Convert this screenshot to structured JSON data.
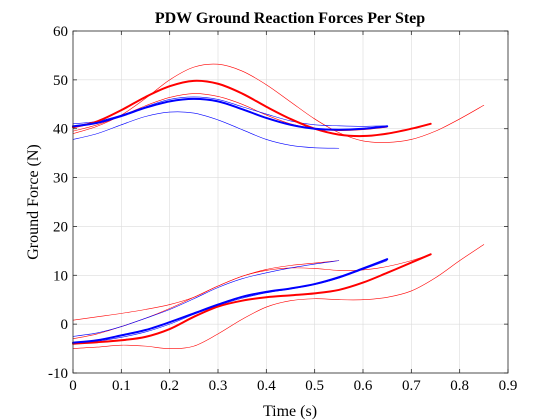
{
  "chart_data": {
    "type": "line",
    "title": "PDW Ground Reaction Forces Per Step",
    "xlabel": "Time (s)",
    "ylabel": "Ground Force (N)",
    "xlim": [
      0,
      0.9
    ],
    "ylim": [
      -10,
      60
    ],
    "xticks": [
      0,
      0.1,
      0.2,
      0.3,
      0.4,
      0.5,
      0.6,
      0.7,
      0.8,
      0.9
    ],
    "xtick_labels": [
      "0",
      "0.1",
      "0.2",
      "0.3",
      "0.4",
      "0.5",
      "0.6",
      "0.7",
      "0.8",
      "0.9"
    ],
    "yticks": [
      -10,
      0,
      10,
      20,
      30,
      40,
      50,
      60
    ],
    "ytick_labels": [
      "-10",
      "0",
      "10",
      "20",
      "30",
      "40",
      "50",
      "60"
    ],
    "grid": true,
    "colors": {
      "red": "#ff0000",
      "blue": "#0000ff",
      "grid": "#dcdcdc",
      "axis": "#262626"
    },
    "series": [
      {
        "color": "#ff0000",
        "width": 2,
        "x": [
          0,
          0.05,
          0.1,
          0.15,
          0.2,
          0.25,
          0.3,
          0.35,
          0.4,
          0.45,
          0.5,
          0.55,
          0.6,
          0.65,
          0.7,
          0.74
        ],
        "y": [
          40.3,
          41.5,
          43.8,
          46.5,
          48.7,
          49.8,
          49.2,
          47.2,
          44.5,
          42.0,
          40.0,
          38.8,
          38.5,
          39.0,
          40.0,
          41.0
        ]
      },
      {
        "color": "#0000ff",
        "width": 2,
        "x": [
          0,
          0.05,
          0.1,
          0.15,
          0.2,
          0.25,
          0.3,
          0.35,
          0.4,
          0.45,
          0.5,
          0.55,
          0.6,
          0.65
        ],
        "y": [
          40.5,
          41.2,
          42.6,
          44.3,
          45.6,
          46.1,
          45.6,
          44.0,
          42.2,
          40.8,
          40.0,
          39.8,
          40.0,
          40.5
        ]
      },
      {
        "color": "#ff0000",
        "width": 0.6,
        "x": [
          0,
          0.05,
          0.1,
          0.15,
          0.2,
          0.25,
          0.3,
          0.35,
          0.4,
          0.45,
          0.5,
          0.55,
          0.6,
          0.65,
          0.7,
          0.75,
          0.8,
          0.85
        ],
        "y": [
          39.0,
          40.5,
          42.8,
          46.2,
          50.0,
          52.6,
          53.2,
          51.8,
          49.0,
          45.5,
          42.0,
          39.2,
          37.5,
          37.2,
          37.8,
          39.5,
          42.0,
          44.8
        ]
      },
      {
        "color": "#ff0000",
        "width": 0.6,
        "x": [
          0,
          0.05,
          0.1,
          0.15,
          0.2,
          0.25,
          0.3,
          0.35,
          0.4,
          0.45,
          0.5,
          0.55,
          0.6,
          0.65
        ],
        "y": [
          39.5,
          40.8,
          42.6,
          44.7,
          46.4,
          47.2,
          46.6,
          45.0,
          42.8,
          41.0,
          40.0,
          39.6,
          39.8,
          40.3
        ]
      },
      {
        "color": "#0000ff",
        "width": 0.6,
        "x": [
          0,
          0.05,
          0.1,
          0.15,
          0.2,
          0.25,
          0.3,
          0.35,
          0.4,
          0.45,
          0.5,
          0.55
        ],
        "y": [
          37.8,
          39.0,
          40.8,
          42.5,
          43.4,
          43.2,
          41.8,
          39.8,
          37.8,
          36.6,
          36.1,
          36.0
        ]
      },
      {
        "color": "#0000ff",
        "width": 0.6,
        "x": [
          0,
          0.05,
          0.1,
          0.15,
          0.2,
          0.25,
          0.3,
          0.35,
          0.4,
          0.45,
          0.5,
          0.55,
          0.6,
          0.65
        ],
        "y": [
          41.0,
          41.5,
          42.8,
          44.5,
          46.0,
          46.5,
          46.0,
          44.5,
          43.0,
          41.6,
          40.8,
          40.6,
          40.5,
          40.6
        ]
      },
      {
        "color": "#ff0000",
        "width": 2,
        "x": [
          0,
          0.05,
          0.1,
          0.15,
          0.2,
          0.25,
          0.3,
          0.35,
          0.4,
          0.45,
          0.5,
          0.55,
          0.6,
          0.65,
          0.7,
          0.74
        ],
        "y": [
          -4.0,
          -3.7,
          -3.3,
          -2.6,
          -1.0,
          1.5,
          3.6,
          4.8,
          5.5,
          5.9,
          6.3,
          7.0,
          8.5,
          10.5,
          12.6,
          14.3
        ]
      },
      {
        "color": "#0000ff",
        "width": 2,
        "x": [
          0,
          0.05,
          0.1,
          0.15,
          0.2,
          0.25,
          0.3,
          0.35,
          0.4,
          0.45,
          0.5,
          0.55,
          0.6,
          0.65
        ],
        "y": [
          -3.8,
          -3.3,
          -2.3,
          -1.2,
          0.4,
          2.2,
          4.0,
          5.6,
          6.6,
          7.3,
          8.2,
          9.6,
          11.4,
          13.3
        ]
      },
      {
        "color": "#ff0000",
        "width": 0.6,
        "x": [
          0,
          0.05,
          0.1,
          0.15,
          0.2,
          0.25,
          0.3,
          0.35,
          0.4,
          0.45,
          0.5,
          0.55,
          0.6,
          0.65,
          0.7,
          0.75,
          0.8,
          0.85
        ],
        "y": [
          -5.0,
          -4.7,
          -4.3,
          -4.5,
          -5.0,
          -4.5,
          -2.0,
          1.0,
          3.5,
          4.8,
          5.2,
          5.0,
          5.0,
          5.5,
          6.8,
          9.5,
          13.0,
          16.3
        ]
      },
      {
        "color": "#ff0000",
        "width": 0.6,
        "x": [
          0,
          0.05,
          0.1,
          0.15,
          0.2,
          0.25,
          0.3,
          0.35,
          0.4,
          0.45,
          0.5,
          0.55,
          0.6,
          0.65,
          0.7,
          0.74
        ],
        "y": [
          0.8,
          1.5,
          2.2,
          3.0,
          4.0,
          5.5,
          7.8,
          9.8,
          11.0,
          11.5,
          11.4,
          11.0,
          11.1,
          11.8,
          13.0,
          14.3
        ]
      },
      {
        "color": "#ff0000",
        "width": 0.6,
        "x": [
          0,
          0.05,
          0.1,
          0.15,
          0.2,
          0.25,
          0.3,
          0.35,
          0.4,
          0.45,
          0.5,
          0.55
        ],
        "y": [
          -3.0,
          -2.0,
          -0.5,
          1.2,
          3.2,
          5.5,
          7.8,
          9.8,
          11.2,
          12.0,
          12.5,
          13.0
        ]
      },
      {
        "color": "#0000ff",
        "width": 0.6,
        "x": [
          0,
          0.05,
          0.1,
          0.15,
          0.2,
          0.25,
          0.3,
          0.35,
          0.4,
          0.45,
          0.5,
          0.55
        ],
        "y": [
          -2.5,
          -1.8,
          -0.5,
          1.2,
          3.0,
          5.2,
          7.5,
          9.3,
          10.5,
          11.5,
          12.3,
          13.0
        ]
      },
      {
        "color": "#0000ff",
        "width": 0.6,
        "x": [
          0,
          0.05,
          0.1,
          0.15,
          0.2,
          0.25,
          0.3,
          0.35,
          0.4,
          0.45,
          0.5,
          0.55,
          0.6,
          0.65
        ],
        "y": [
          -4.0,
          -3.5,
          -2.7,
          -1.6,
          0.0,
          2.0,
          3.8,
          5.3,
          6.4,
          7.2,
          8.1,
          9.4,
          11.2,
          13.0
        ]
      }
    ]
  }
}
